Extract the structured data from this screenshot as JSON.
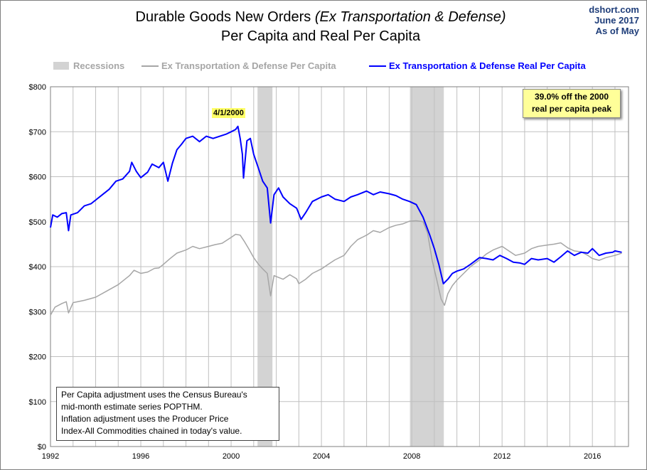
{
  "source": {
    "site": "dshort.com",
    "date": "June 2017",
    "as_of": "As of May"
  },
  "colors": {
    "recession": "#d3d3d3",
    "nominal": "#a6a6a6",
    "real": "#0000ff",
    "grid": "#c0c0c0"
  },
  "chart_data": {
    "type": "line",
    "title_part1": "Durable Goods New Orders ",
    "title_part2": "(Ex Transportation & Defense)",
    "subtitle": "Per Capita and Real Per Capita",
    "xlim": [
      1992,
      2017.6
    ],
    "ylim": [
      0,
      800
    ],
    "x_ticks": [
      "1992",
      "1996",
      "2000",
      "2004",
      "2008",
      "2012",
      "2016"
    ],
    "y_ticks": [
      "$0",
      "$100",
      "$200",
      "$300",
      "$400",
      "$500",
      "$600",
      "$700",
      "$800"
    ],
    "grid": "vertical and horizontal",
    "legend_position": "top",
    "legend": [
      {
        "label": "Recessions",
        "kind": "bar"
      },
      {
        "label": "Ex Transportation & Defense Per Capita",
        "kind": "line"
      },
      {
        "label": "Ex Transportation & Defense Real Per Capita",
        "kind": "line"
      }
    ],
    "recessions": [
      [
        2001.17,
        2001.83
      ],
      [
        2007.92,
        2009.42
      ]
    ],
    "series": [
      {
        "name": "Ex Transportation & Defense Per Capita",
        "points": [
          [
            1992,
            292
          ],
          [
            1992.2,
            310
          ],
          [
            1992.5,
            318
          ],
          [
            1992.7,
            322
          ],
          [
            1992.8,
            297
          ],
          [
            1993,
            320
          ],
          [
            1993.5,
            325
          ],
          [
            1994,
            332
          ],
          [
            1994.5,
            346
          ],
          [
            1995,
            360
          ],
          [
            1995.3,
            372
          ],
          [
            1995.5,
            380
          ],
          [
            1995.7,
            392
          ],
          [
            1996,
            385
          ],
          [
            1996.3,
            388
          ],
          [
            1996.6,
            396
          ],
          [
            1996.8,
            397
          ],
          [
            1997,
            405
          ],
          [
            1997.3,
            418
          ],
          [
            1997.6,
            430
          ],
          [
            1998,
            437
          ],
          [
            1998.3,
            445
          ],
          [
            1998.6,
            440
          ],
          [
            1999,
            445
          ],
          [
            1999.3,
            449
          ],
          [
            1999.6,
            452
          ],
          [
            2000,
            465
          ],
          [
            2000.2,
            472
          ],
          [
            2000.4,
            470
          ],
          [
            2000.6,
            455
          ],
          [
            2000.8,
            438
          ],
          [
            2001,
            420
          ],
          [
            2001.2,
            406
          ],
          [
            2001.4,
            395
          ],
          [
            2001.6,
            385
          ],
          [
            2001.75,
            335
          ],
          [
            2001.9,
            380
          ],
          [
            2002,
            378
          ],
          [
            2002.3,
            372
          ],
          [
            2002.6,
            382
          ],
          [
            2002.9,
            373
          ],
          [
            2003,
            362
          ],
          [
            2003.3,
            372
          ],
          [
            2003.6,
            385
          ],
          [
            2004,
            395
          ],
          [
            2004.3,
            405
          ],
          [
            2004.6,
            415
          ],
          [
            2005,
            425
          ],
          [
            2005.3,
            445
          ],
          [
            2005.6,
            460
          ],
          [
            2006,
            470
          ],
          [
            2006.3,
            480
          ],
          [
            2006.6,
            476
          ],
          [
            2007,
            487
          ],
          [
            2007.3,
            492
          ],
          [
            2007.6,
            495
          ],
          [
            2007.9,
            501
          ],
          [
            2008.2,
            502
          ],
          [
            2008.5,
            500
          ],
          [
            2008.7,
            475
          ],
          [
            2008.9,
            415
          ],
          [
            2009.1,
            372
          ],
          [
            2009.3,
            328
          ],
          [
            2009.45,
            314
          ],
          [
            2009.6,
            340
          ],
          [
            2009.8,
            358
          ],
          [
            2010,
            370
          ],
          [
            2010.3,
            385
          ],
          [
            2010.6,
            400
          ],
          [
            2011,
            415
          ],
          [
            2011.3,
            428
          ],
          [
            2011.6,
            437
          ],
          [
            2012,
            445
          ],
          [
            2012.3,
            435
          ],
          [
            2012.6,
            425
          ],
          [
            2013,
            430
          ],
          [
            2013.3,
            440
          ],
          [
            2013.6,
            445
          ],
          [
            2014,
            448
          ],
          [
            2014.3,
            450
          ],
          [
            2014.6,
            453
          ],
          [
            2014.9,
            442
          ],
          [
            2015.2,
            435
          ],
          [
            2015.5,
            433
          ],
          [
            2015.8,
            425
          ],
          [
            2016,
            418
          ],
          [
            2016.3,
            414
          ],
          [
            2016.6,
            420
          ],
          [
            2017,
            425
          ],
          [
            2017.3,
            430
          ]
        ]
      },
      {
        "name": "Ex Transportation & Defense Real Per Capita",
        "points": [
          [
            1992,
            487
          ],
          [
            1992.1,
            515
          ],
          [
            1992.3,
            510
          ],
          [
            1992.5,
            518
          ],
          [
            1992.7,
            520
          ],
          [
            1992.8,
            480
          ],
          [
            1992.9,
            515
          ],
          [
            1993.2,
            520
          ],
          [
            1993.5,
            535
          ],
          [
            1993.8,
            540
          ],
          [
            1994,
            548
          ],
          [
            1994.3,
            560
          ],
          [
            1994.6,
            572
          ],
          [
            1994.9,
            590
          ],
          [
            1995.2,
            595
          ],
          [
            1995.5,
            612
          ],
          [
            1995.6,
            632
          ],
          [
            1995.8,
            612
          ],
          [
            1996,
            598
          ],
          [
            1996.3,
            610
          ],
          [
            1996.5,
            628
          ],
          [
            1996.8,
            620
          ],
          [
            1997,
            632
          ],
          [
            1997.2,
            590
          ],
          [
            1997.4,
            630
          ],
          [
            1997.6,
            660
          ],
          [
            1997.8,
            672
          ],
          [
            1998,
            685
          ],
          [
            1998.3,
            690
          ],
          [
            1998.6,
            678
          ],
          [
            1998.9,
            690
          ],
          [
            1999.2,
            685
          ],
          [
            1999.5,
            690
          ],
          [
            1999.8,
            695
          ],
          [
            2000,
            700
          ],
          [
            2000.2,
            705
          ],
          [
            2000.3,
            712
          ],
          [
            2000.4,
            685
          ],
          [
            2000.5,
            650
          ],
          [
            2000.55,
            597
          ],
          [
            2000.7,
            680
          ],
          [
            2000.85,
            685
          ],
          [
            2001,
            650
          ],
          [
            2001.2,
            620
          ],
          [
            2001.4,
            590
          ],
          [
            2001.6,
            575
          ],
          [
            2001.75,
            497
          ],
          [
            2001.9,
            560
          ],
          [
            2002.1,
            575
          ],
          [
            2002.3,
            555
          ],
          [
            2002.6,
            540
          ],
          [
            2002.9,
            530
          ],
          [
            2003.1,
            505
          ],
          [
            2003.3,
            520
          ],
          [
            2003.6,
            545
          ],
          [
            2004,
            555
          ],
          [
            2004.3,
            560
          ],
          [
            2004.6,
            550
          ],
          [
            2005,
            545
          ],
          [
            2005.3,
            555
          ],
          [
            2005.6,
            560
          ],
          [
            2006,
            568
          ],
          [
            2006.3,
            560
          ],
          [
            2006.6,
            566
          ],
          [
            2007,
            562
          ],
          [
            2007.3,
            558
          ],
          [
            2007.6,
            550
          ],
          [
            2007.9,
            545
          ],
          [
            2008.2,
            538
          ],
          [
            2008.5,
            510
          ],
          [
            2008.8,
            470
          ],
          [
            2009.0,
            440
          ],
          [
            2009.2,
            405
          ],
          [
            2009.4,
            362
          ],
          [
            2009.6,
            372
          ],
          [
            2009.8,
            385
          ],
          [
            2010,
            390
          ],
          [
            2010.3,
            395
          ],
          [
            2010.6,
            405
          ],
          [
            2011,
            420
          ],
          [
            2011.3,
            418
          ],
          [
            2011.6,
            415
          ],
          [
            2011.9,
            425
          ],
          [
            2012.2,
            418
          ],
          [
            2012.5,
            410
          ],
          [
            2012.8,
            408
          ],
          [
            2013,
            405
          ],
          [
            2013.3,
            418
          ],
          [
            2013.6,
            415
          ],
          [
            2014,
            418
          ],
          [
            2014.3,
            410
          ],
          [
            2014.6,
            422
          ],
          [
            2014.9,
            435
          ],
          [
            2015.2,
            425
          ],
          [
            2015.5,
            432
          ],
          [
            2015.8,
            430
          ],
          [
            2016,
            440
          ],
          [
            2016.3,
            425
          ],
          [
            2016.6,
            430
          ],
          [
            2016.9,
            432
          ],
          [
            2017,
            435
          ],
          [
            2017.3,
            432
          ]
        ]
      }
    ],
    "annotations": [
      {
        "text": "4/1/2000",
        "x": 2000.25,
        "y": 712
      },
      {
        "text_line1": "39.0% off the 2000",
        "text_line2": "real per capita peak"
      }
    ]
  },
  "note": {
    "line1": "Per Capita adjustment uses the Census Bureau's",
    "line2": "mid-month estimate series POPTHM.",
    "line3": "Inflation adjustment uses the Producer Price",
    "line4": "Index-All Commodities chained in today's value."
  }
}
